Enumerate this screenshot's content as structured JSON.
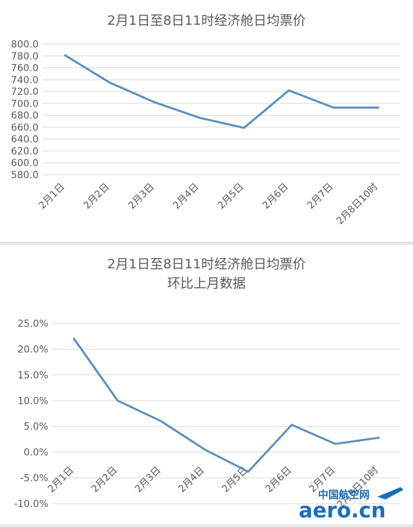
{
  "chart_data": [
    {
      "type": "line",
      "title": "2月1日至8日11时经济舱日均票价",
      "categories": [
        "2月1日",
        "2月2日",
        "2月3日",
        "2月4日",
        "2月5日",
        "2月6日",
        "2月7日",
        "2月8日10时"
      ],
      "values": [
        781,
        735,
        702,
        676,
        659,
        722,
        693,
        693
      ],
      "ylim": [
        580,
        800
      ],
      "ytick_step": 20,
      "ytick_labels": [
        "580.0",
        "600.0",
        "620.0",
        "640.0",
        "660.0",
        "680.0",
        "700.0",
        "720.0",
        "740.0",
        "760.0",
        "780.0",
        "800.0"
      ],
      "grid": true,
      "line_color": "#5b8fc0"
    },
    {
      "type": "line",
      "title": "2月1日至8日11时经济舱日均票价",
      "subtitle": "环比上月数据",
      "categories": [
        "2月1日",
        "2月2日",
        "2月3日",
        "2月4日",
        "2月5日",
        "2月6日",
        "2月7日",
        "2月8日10时"
      ],
      "values": [
        22.0,
        10.0,
        6.0,
        0.5,
        -3.8,
        5.3,
        1.6,
        2.8
      ],
      "ylim": [
        -10,
        25
      ],
      "ytick_step": 5,
      "ytick_labels": [
        "-10.0%",
        "-5.0%",
        "0.0%",
        "5.0%",
        "10.0%",
        "15.0%",
        "20.0%",
        "25.0%"
      ],
      "grid": true,
      "line_color": "#5b8fc0"
    }
  ],
  "watermark": {
    "site_name": "中国航空网",
    "domain": "aero.cn",
    "color": "#1b6fb8"
  }
}
